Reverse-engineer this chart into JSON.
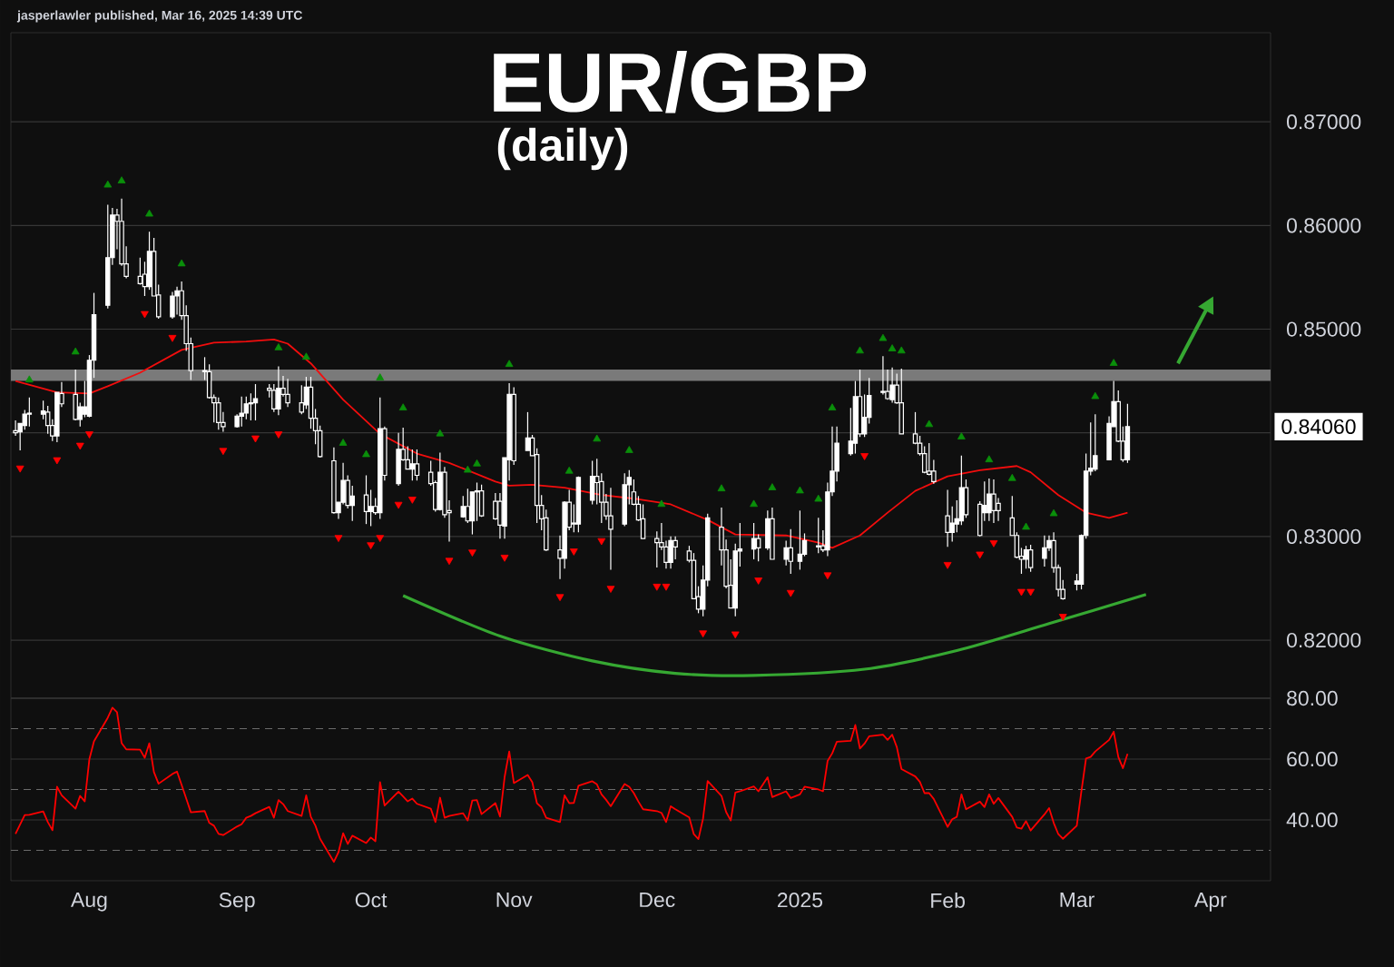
{
  "chart_data": [
    {
      "type": "candlestick",
      "title": "EUR/GBP",
      "subtitle": "(daily)",
      "annotations": [
        "jasperlawler published, Mar 16, 2025 14:39 UTC"
      ],
      "color": "#ffffff",
      "x": [
        "2024-07-16",
        "2024-07-17",
        "2024-07-18",
        "2024-07-19",
        "2024-07-22",
        "2024-07-23",
        "2024-07-24",
        "2024-07-25",
        "2024-07-26",
        "2024-07-29",
        "2024-07-30",
        "2024-07-31",
        "2024-08-01",
        "2024-08-02",
        "2024-08-05",
        "2024-08-06",
        "2024-08-07",
        "2024-08-08",
        "2024-08-09",
        "2024-08-12",
        "2024-08-13",
        "2024-08-14",
        "2024-08-15",
        "2024-08-16",
        "2024-08-19",
        "2024-08-20",
        "2024-08-21",
        "2024-08-22",
        "2024-08-23",
        "2024-08-26",
        "2024-08-27",
        "2024-08-28",
        "2024-08-29",
        "2024-08-30",
        "2024-09-02",
        "2024-09-03",
        "2024-09-04",
        "2024-09-05",
        "2024-09-06",
        "2024-09-09",
        "2024-09-10",
        "2024-09-11",
        "2024-09-12",
        "2024-09-13",
        "2024-09-16",
        "2024-09-17",
        "2024-09-18",
        "2024-09-19",
        "2024-09-20",
        "2024-09-23",
        "2024-09-24",
        "2024-09-25",
        "2024-09-26",
        "2024-09-27",
        "2024-09-30",
        "2024-10-01",
        "2024-10-02",
        "2024-10-03",
        "2024-10-04",
        "2024-10-07",
        "2024-10-08",
        "2024-10-09",
        "2024-10-10",
        "2024-10-11",
        "2024-10-14",
        "2024-10-15",
        "2024-10-16",
        "2024-10-17",
        "2024-10-18",
        "2024-10-21",
        "2024-10-22",
        "2024-10-23",
        "2024-10-24",
        "2024-10-25",
        "2024-10-28",
        "2024-10-29",
        "2024-10-30",
        "2024-10-31",
        "2024-11-01",
        "2024-11-04",
        "2024-11-05",
        "2024-11-06",
        "2024-11-07",
        "2024-11-08",
        "2024-11-11",
        "2024-11-12",
        "2024-11-13",
        "2024-11-14",
        "2024-11-15",
        "2024-11-18",
        "2024-11-19",
        "2024-11-20",
        "2024-11-21",
        "2024-11-22",
        "2024-11-25",
        "2024-11-26",
        "2024-11-27",
        "2024-11-28",
        "2024-11-29",
        "2024-12-02",
        "2024-12-03",
        "2024-12-04",
        "2024-12-05",
        "2024-12-06",
        "2024-12-09",
        "2024-12-10",
        "2024-12-11",
        "2024-12-12",
        "2024-12-13",
        "2024-12-16",
        "2024-12-17",
        "2024-12-18",
        "2024-12-19",
        "2024-12-20",
        "2024-12-23",
        "2024-12-24",
        "2024-12-26",
        "2024-12-27",
        "2024-12-30",
        "2024-12-31",
        "2025-01-02",
        "2025-01-03",
        "2025-01-06",
        "2025-01-07",
        "2025-01-08",
        "2025-01-09",
        "2025-01-10",
        "2025-01-13",
        "2025-01-14",
        "2025-01-15",
        "2025-01-16",
        "2025-01-17",
        "2025-01-20",
        "2025-01-21",
        "2025-01-22",
        "2025-01-23",
        "2025-01-24",
        "2025-01-27",
        "2025-01-28",
        "2025-01-29",
        "2025-01-30",
        "2025-01-31",
        "2025-02-03",
        "2025-02-04",
        "2025-02-05",
        "2025-02-06",
        "2025-02-07",
        "2025-02-10",
        "2025-02-11",
        "2025-02-12",
        "2025-02-13",
        "2025-02-14",
        "2025-02-17",
        "2025-02-18",
        "2025-02-19",
        "2025-02-20",
        "2025-02-21",
        "2025-02-24",
        "2025-02-25",
        "2025-02-26",
        "2025-02-27",
        "2025-02-28",
        "2025-03-03",
        "2025-03-04",
        "2025-03-05",
        "2025-03-06",
        "2025-03-07",
        "2025-03-10",
        "2025-03-11",
        "2025-03-12",
        "2025-03-13",
        "2025-03-14"
      ],
      "ohlc": [
        [
          0.8402,
          0.8412,
          0.8397,
          0.84
        ],
        [
          0.8401,
          0.8409,
          0.8383,
          0.8409
        ],
        [
          0.8407,
          0.8422,
          0.8403,
          0.8418
        ],
        [
          0.8418,
          0.8434,
          0.8406,
          0.8419
        ],
        [
          0.8418,
          0.8431,
          0.8413,
          0.8421
        ],
        [
          0.842,
          0.8426,
          0.8399,
          0.8407
        ],
        [
          0.8407,
          0.8413,
          0.8392,
          0.8397
        ],
        [
          0.8397,
          0.8439,
          0.8391,
          0.8439
        ],
        [
          0.8438,
          0.8449,
          0.8425,
          0.8428
        ],
        [
          0.8437,
          0.8461,
          0.8412,
          0.8413
        ],
        [
          0.8413,
          0.8429,
          0.8406,
          0.8425
        ],
        [
          0.8418,
          0.845,
          0.8415,
          0.8425
        ],
        [
          0.8416,
          0.8475,
          0.8415,
          0.847
        ],
        [
          0.847,
          0.8535,
          0.8453,
          0.8514
        ],
        [
          0.8523,
          0.862,
          0.852,
          0.8569
        ],
        [
          0.8569,
          0.8617,
          0.8562,
          0.861
        ],
        [
          0.861,
          0.8616,
          0.8577,
          0.8604
        ],
        [
          0.8604,
          0.8626,
          0.8561,
          0.8563
        ],
        [
          0.8563,
          0.858,
          0.8549,
          0.8551
        ],
        [
          0.8551,
          0.8569,
          0.8543,
          0.8544
        ],
        [
          0.8553,
          0.8565,
          0.8532,
          0.8541
        ],
        [
          0.8541,
          0.8594,
          0.8538,
          0.8575
        ],
        [
          0.8575,
          0.8588,
          0.8532,
          0.8532
        ],
        [
          0.8533,
          0.8543,
          0.851,
          0.8512
        ],
        [
          0.8512,
          0.8536,
          0.851,
          0.8532
        ],
        [
          0.8532,
          0.8541,
          0.8514,
          0.8537
        ],
        [
          0.8537,
          0.8546,
          0.8509,
          0.8513
        ],
        [
          0.8513,
          0.8523,
          0.8479,
          0.8486
        ],
        [
          0.8486,
          0.8492,
          0.8451,
          0.846
        ],
        [
          0.846,
          0.8473,
          0.8451,
          0.8459
        ],
        [
          0.8459,
          0.8466,
          0.8433,
          0.8434
        ],
        [
          0.8434,
          0.8437,
          0.841,
          0.8429
        ],
        [
          0.8429,
          0.8434,
          0.8403,
          0.841
        ],
        [
          0.841,
          0.842,
          0.8401,
          0.8406
        ],
        [
          0.8406,
          0.8418,
          0.8405,
          0.8416
        ],
        [
          0.8416,
          0.8435,
          0.8406,
          0.8419
        ],
        [
          0.8419,
          0.8435,
          0.8413,
          0.8428
        ],
        [
          0.8428,
          0.8438,
          0.8412,
          0.8429
        ],
        [
          0.8429,
          0.8447,
          0.8412,
          0.8433
        ],
        [
          0.8443,
          0.8447,
          0.8434,
          0.8441
        ],
        [
          0.8441,
          0.8447,
          0.842,
          0.8423
        ],
        [
          0.8423,
          0.8464,
          0.8417,
          0.8443
        ],
        [
          0.8443,
          0.8455,
          0.8435,
          0.8437
        ],
        [
          0.8437,
          0.8452,
          0.8425,
          0.8429
        ],
        [
          0.8429,
          0.8446,
          0.8418,
          0.842
        ],
        [
          0.8427,
          0.8454,
          0.8423,
          0.8444
        ],
        [
          0.8444,
          0.8454,
          0.8404,
          0.8414
        ],
        [
          0.8414,
          0.8423,
          0.8389,
          0.8402
        ],
        [
          0.8402,
          0.8407,
          0.8376,
          0.8377
        ],
        [
          0.8373,
          0.8386,
          0.8322,
          0.8323
        ],
        [
          0.8323,
          0.8333,
          0.8317,
          0.8333
        ],
        [
          0.8333,
          0.8371,
          0.8331,
          0.8354
        ],
        [
          0.8354,
          0.8359,
          0.8327,
          0.833
        ],
        [
          0.833,
          0.8349,
          0.8315,
          0.8339
        ],
        [
          0.834,
          0.8359,
          0.8312,
          0.8324
        ],
        [
          0.8324,
          0.8345,
          0.831,
          0.8329
        ],
        [
          0.8329,
          0.8337,
          0.8321,
          0.8323
        ],
        [
          0.8323,
          0.8434,
          0.8317,
          0.8404
        ],
        [
          0.8404,
          0.8406,
          0.8354,
          0.8359
        ],
        [
          0.8351,
          0.84,
          0.8349,
          0.8384
        ],
        [
          0.8384,
          0.8405,
          0.8373,
          0.8374
        ],
        [
          0.8374,
          0.8387,
          0.8365,
          0.8365
        ],
        [
          0.8365,
          0.8384,
          0.8354,
          0.837
        ],
        [
          0.837,
          0.8384,
          0.8354,
          0.8359
        ],
        [
          0.8362,
          0.8373,
          0.8349,
          0.8351
        ],
        [
          0.8352,
          0.8354,
          0.8324,
          0.8326
        ],
        [
          0.8326,
          0.8381,
          0.8325,
          0.8362
        ],
        [
          0.8362,
          0.8367,
          0.8318,
          0.8321
        ],
        [
          0.8325,
          0.8335,
          0.8295,
          0.8323
        ],
        [
          0.8319,
          0.8339,
          0.8318,
          0.8329
        ],
        [
          0.8329,
          0.8346,
          0.8313,
          0.8315
        ],
        [
          0.8315,
          0.8343,
          0.8302,
          0.8343
        ],
        [
          0.8343,
          0.8352,
          0.8315,
          0.8344
        ],
        [
          0.8344,
          0.835,
          0.8319,
          0.832
        ],
        [
          0.8334,
          0.8342,
          0.8316,
          0.8317
        ],
        [
          0.8334,
          0.8342,
          0.8298,
          0.8311
        ],
        [
          0.831,
          0.8376,
          0.8298,
          0.8376
        ],
        [
          0.8374,
          0.8448,
          0.8354,
          0.8437
        ],
        [
          0.8437,
          0.8444,
          0.8369,
          0.8373
        ],
        [
          0.8383,
          0.842,
          0.8383,
          0.8395
        ],
        [
          0.8395,
          0.8398,
          0.8378,
          0.8378
        ],
        [
          0.8379,
          0.8385,
          0.8313,
          0.833
        ],
        [
          0.833,
          0.834,
          0.8306,
          0.8317
        ],
        [
          0.8318,
          0.8326,
          0.8286,
          0.8287
        ],
        [
          0.8287,
          0.8301,
          0.8259,
          0.8279
        ],
        [
          0.8279,
          0.8334,
          0.8269,
          0.8333
        ],
        [
          0.8333,
          0.8345,
          0.8306,
          0.8309
        ],
        [
          0.8313,
          0.8331,
          0.8304,
          0.8312
        ],
        [
          0.8312,
          0.8358,
          0.8304,
          0.8357
        ],
        [
          0.8335,
          0.8373,
          0.8331,
          0.8358
        ],
        [
          0.8358,
          0.8375,
          0.8331,
          0.8352
        ],
        [
          0.8353,
          0.8361,
          0.8313,
          0.8333
        ],
        [
          0.8333,
          0.8341,
          0.8316,
          0.832
        ],
        [
          0.832,
          0.8347,
          0.8268,
          0.8307
        ],
        [
          0.8312,
          0.8361,
          0.831,
          0.835
        ],
        [
          0.835,
          0.8364,
          0.8331,
          0.8357
        ],
        [
          0.8343,
          0.8355,
          0.833,
          0.8331
        ],
        [
          0.8331,
          0.8339,
          0.8315,
          0.8316
        ],
        [
          0.8317,
          0.8331,
          0.8298,
          0.8298
        ],
        [
          0.8298,
          0.8305,
          0.827,
          0.8294
        ],
        [
          0.8294,
          0.8313,
          0.8287,
          0.829
        ],
        [
          0.829,
          0.8296,
          0.8269,
          0.8275
        ],
        [
          0.8275,
          0.83,
          0.8269,
          0.8296
        ],
        [
          0.8296,
          0.83,
          0.8278,
          0.829
        ],
        [
          0.8286,
          0.8291,
          0.8275,
          0.8277
        ],
        [
          0.8277,
          0.8284,
          0.824,
          0.824
        ],
        [
          0.8242,
          0.8252,
          0.8226,
          0.823
        ],
        [
          0.823,
          0.8272,
          0.8223,
          0.8258
        ],
        [
          0.8258,
          0.8322,
          0.8252,
          0.8318
        ],
        [
          0.8309,
          0.8328,
          0.8272,
          0.8287
        ],
        [
          0.8287,
          0.8297,
          0.825,
          0.8252
        ],
        [
          0.8253,
          0.8278,
          0.8231,
          0.8231
        ],
        [
          0.8231,
          0.8293,
          0.8223,
          0.8286
        ],
        [
          0.8286,
          0.8313,
          0.8271,
          0.8288
        ],
        [
          0.8288,
          0.8313,
          0.8278,
          0.8298
        ],
        [
          0.8298,
          0.8302,
          0.8276,
          0.8289
        ],
        [
          0.8289,
          0.8325,
          0.8287,
          0.8317
        ],
        [
          0.8317,
          0.8328,
          0.8278,
          0.8278
        ],
        [
          0.8278,
          0.8296,
          0.8272,
          0.8289
        ],
        [
          0.8289,
          0.8307,
          0.8264,
          0.8276
        ],
        [
          0.8276,
          0.8325,
          0.8268,
          0.8283
        ],
        [
          0.8283,
          0.8303,
          0.8281,
          0.8296
        ],
        [
          0.829,
          0.8318,
          0.8284,
          0.8291
        ],
        [
          0.8291,
          0.8306,
          0.8285,
          0.8287
        ],
        [
          0.8287,
          0.8352,
          0.8281,
          0.8343
        ],
        [
          0.8343,
          0.8406,
          0.8339,
          0.8363
        ],
        [
          0.8363,
          0.8406,
          0.8353,
          0.839
        ],
        [
          0.838,
          0.8424,
          0.8378,
          0.8392
        ],
        [
          0.839,
          0.845,
          0.838,
          0.8435
        ],
        [
          0.8435,
          0.8461,
          0.8396,
          0.8399
        ],
        [
          0.8399,
          0.8437,
          0.8396,
          0.8415
        ],
        [
          0.8415,
          0.8453,
          0.8409,
          0.8436
        ],
        [
          0.8439,
          0.8474,
          0.8437,
          0.844
        ],
        [
          0.844,
          0.8461,
          0.8432,
          0.8433
        ],
        [
          0.8432,
          0.8463,
          0.8429,
          0.8446
        ],
        [
          0.8446,
          0.8457,
          0.8428,
          0.8429
        ],
        [
          0.8429,
          0.8462,
          0.8399,
          0.8399
        ],
        [
          0.8399,
          0.842,
          0.8389,
          0.839
        ],
        [
          0.839,
          0.8397,
          0.8378,
          0.838
        ],
        [
          0.838,
          0.8387,
          0.8361,
          0.8362
        ],
        [
          0.8363,
          0.839,
          0.8359,
          0.836
        ],
        [
          0.8363,
          0.8374,
          0.8351,
          0.8353
        ],
        [
          0.832,
          0.8345,
          0.829,
          0.8304
        ],
        [
          0.8304,
          0.8329,
          0.8295,
          0.8313
        ],
        [
          0.8312,
          0.8335,
          0.8304,
          0.8317
        ],
        [
          0.8315,
          0.8378,
          0.8311,
          0.8347
        ],
        [
          0.8347,
          0.8355,
          0.8318,
          0.8321
        ],
        [
          0.8331,
          0.8334,
          0.83,
          0.8301
        ],
        [
          0.8323,
          0.8353,
          0.8315,
          0.833
        ],
        [
          0.8323,
          0.8356,
          0.8315,
          0.8341
        ],
        [
          0.8341,
          0.8355,
          0.8313,
          0.8325
        ],
        [
          0.8332,
          0.8337,
          0.8315,
          0.8325
        ],
        [
          0.8318,
          0.8339,
          0.8301,
          0.8301
        ],
        [
          0.8301,
          0.8304,
          0.8279,
          0.828
        ],
        [
          0.8281,
          0.8289,
          0.8264,
          0.8278
        ],
        [
          0.8278,
          0.8291,
          0.8269,
          0.8287
        ],
        [
          0.8287,
          0.8292,
          0.8266,
          0.827
        ],
        [
          0.8279,
          0.8301,
          0.8271,
          0.8289
        ],
        [
          0.8289,
          0.8301,
          0.8286,
          0.8296
        ],
        [
          0.8296,
          0.8304,
          0.8265,
          0.827
        ],
        [
          0.827,
          0.8273,
          0.8242,
          0.8249
        ],
        [
          0.8249,
          0.8258,
          0.8239,
          0.824
        ],
        [
          0.8254,
          0.8264,
          0.8248,
          0.8257
        ],
        [
          0.8254,
          0.8302,
          0.8249,
          0.8301
        ],
        [
          0.8301,
          0.838,
          0.8298,
          0.8363
        ],
        [
          0.8363,
          0.841,
          0.8359,
          0.8366
        ],
        [
          0.8365,
          0.8418,
          0.8363,
          0.8378
        ],
        [
          0.8374,
          0.8416,
          0.8374,
          0.8409
        ],
        [
          0.8406,
          0.845,
          0.8406,
          0.843
        ],
        [
          0.843,
          0.8441,
          0.8391,
          0.8392
        ],
        [
          0.8392,
          0.8406,
          0.8372,
          0.8374
        ],
        [
          0.8374,
          0.8428,
          0.8371,
          0.8406
        ]
      ],
      "series": [
        {
          "type": "line",
          "color": "#f20d0d",
          "x": [
            "2024-07-16",
            "2024-07-25",
            "2024-08-01",
            "2024-08-05",
            "2024-08-12",
            "2024-08-21",
            "2024-08-28",
            "2024-09-04",
            "2024-09-10",
            "2024-09-13",
            "2024-09-18",
            "2024-09-25",
            "2024-10-03",
            "2024-10-11",
            "2024-10-18",
            "2024-10-28",
            "2024-10-31",
            "2024-11-05",
            "2024-11-12",
            "2024-11-20",
            "2024-11-28",
            "2024-12-05",
            "2024-12-13",
            "2024-12-19",
            "2024-12-30",
            "2025-01-06",
            "2025-01-09",
            "2025-01-15",
            "2025-01-21",
            "2025-01-27",
            "2025-02-03",
            "2025-02-10",
            "2025-02-18",
            "2025-02-21",
            "2025-02-27",
            "2025-03-05",
            "2025-03-10",
            "2025-03-14"
          ],
          "values": [
            0.845,
            0.8439,
            0.8438,
            0.8445,
            0.8458,
            0.848,
            0.8487,
            0.8488,
            0.849,
            0.8486,
            0.8467,
            0.8432,
            0.8399,
            0.838,
            0.8371,
            0.8353,
            0.8349,
            0.835,
            0.8347,
            0.834,
            0.8336,
            0.8331,
            0.8316,
            0.8302,
            0.8301,
            0.8294,
            0.8289,
            0.8301,
            0.8323,
            0.8344,
            0.8358,
            0.8364,
            0.8368,
            0.8362,
            0.834,
            0.8323,
            0.8318,
            0.8323
          ]
        },
        {
          "type": "scatter",
          "marker": "triangle",
          "color": "#0a8f0a",
          "x": [
            "2024-07-19",
            "2024-07-29",
            "2024-08-05",
            "2024-08-08",
            "2024-08-14",
            "2024-08-21",
            "2024-09-11",
            "2024-09-17",
            "2024-09-25",
            "2024-09-30",
            "2024-10-03",
            "2024-10-08",
            "2024-10-16",
            "2024-10-22",
            "2024-10-24",
            "2024-10-31",
            "2024-11-13",
            "2024-11-19",
            "2024-11-26",
            "2024-12-03",
            "2024-12-16",
            "2024-12-23",
            "2024-12-27",
            "2025-01-02",
            "2025-01-06",
            "2025-01-09",
            "2025-01-15",
            "2025-01-20",
            "2025-01-22",
            "2025-01-24",
            "2025-01-30",
            "2025-02-06",
            "2025-02-12",
            "2025-02-17",
            "2025-02-20",
            "2025-02-26",
            "2025-03-07",
            "2025-03-11"
          ],
          "values": [
            0.8451,
            0.8478,
            0.8639,
            0.8643,
            0.8611,
            0.8563,
            0.8482,
            0.8473,
            0.839,
            0.8379,
            0.8453,
            0.8424,
            0.8399,
            0.8364,
            0.837,
            0.8466,
            0.8363,
            0.8394,
            0.8383,
            0.8331,
            0.8346,
            0.8331,
            0.8347,
            0.8344,
            0.8336,
            0.8424,
            0.8479,
            0.8491,
            0.8481,
            0.8479,
            0.8408,
            0.8396,
            0.8374,
            0.8356,
            0.8309,
            0.8322,
            0.8435,
            0.8467
          ]
        },
        {
          "type": "scatter",
          "marker": "triangle",
          "color": "#ff0000",
          "x": [
            "2024-07-17",
            "2024-07-25",
            "2024-07-30",
            "2024-08-01",
            "2024-08-13",
            "2024-08-19",
            "2024-08-30",
            "2024-09-06",
            "2024-09-11",
            "2024-09-24",
            "2024-10-01",
            "2024-10-03",
            "2024-10-07",
            "2024-10-10",
            "2024-10-18",
            "2024-10-23",
            "2024-10-30",
            "2024-11-11",
            "2024-11-14",
            "2024-11-20",
            "2024-11-22",
            "2024-12-02",
            "2024-12-04",
            "2024-12-12",
            "2024-12-19",
            "2024-12-24",
            "2024-12-31",
            "2025-01-08",
            "2025-01-16",
            "2025-02-03",
            "2025-02-10",
            "2025-02-13",
            "2025-02-19",
            "2025-02-21",
            "2025-02-28"
          ],
          "values": [
            0.8366,
            0.8374,
            0.8388,
            0.8399,
            0.8515,
            0.8492,
            0.8383,
            0.8395,
            0.8399,
            0.8299,
            0.8292,
            0.8299,
            0.8331,
            0.8336,
            0.8277,
            0.8285,
            0.828,
            0.8242,
            0.8286,
            0.8296,
            0.825,
            0.8252,
            0.8252,
            0.8207,
            0.8206,
            0.8258,
            0.8246,
            0.8263,
            0.8378,
            0.8273,
            0.8283,
            0.8294,
            0.8247,
            0.8247,
            0.8223
          ]
        },
        {
          "type": "line",
          "color": "#36a832",
          "x": [
            "2024-10-08",
            "2024-10-29",
            "2024-11-18",
            "2024-12-06",
            "2024-12-23",
            "2025-01-16",
            "2025-02-05",
            "2025-02-25",
            "2025-03-18"
          ],
          "values": [
            0.8243,
            0.8204,
            0.818,
            0.8168,
            0.8166,
            0.8172,
            0.819,
            0.8216,
            0.8244
          ]
        }
      ],
      "bands": [
        {
          "axis": "y",
          "from": 0.845,
          "to": 0.8461,
          "color": "#7a7a7a"
        }
      ],
      "xlim": [
        "2024-07-15",
        "2025-04-14"
      ],
      "ylim": [
        0.8144,
        0.8786
      ],
      "yticks": [
        {
          "value": 0.82,
          "label": "0.82000"
        },
        {
          "value": 0.83,
          "label": "0.83000"
        },
        {
          "value": 0.84,
          "label": null
        },
        {
          "value": 0.8406,
          "label": "0.84060"
        },
        {
          "value": 0.85,
          "label": "0.85000"
        },
        {
          "value": 0.86,
          "label": "0.86000"
        },
        {
          "value": 0.87,
          "label": "0.87000"
        }
      ],
      "grid": "y",
      "tick_labels": "y"
    },
    {
      "type": "line",
      "x": [
        "2024-07-16",
        "2024-07-17",
        "2024-07-18",
        "2024-07-19",
        "2024-07-22",
        "2024-07-23",
        "2024-07-24",
        "2024-07-25",
        "2024-07-26",
        "2024-07-29",
        "2024-07-30",
        "2024-07-31",
        "2024-08-01",
        "2024-08-02",
        "2024-08-05",
        "2024-08-06",
        "2024-08-07",
        "2024-08-08",
        "2024-08-09",
        "2024-08-12",
        "2024-08-13",
        "2024-08-14",
        "2024-08-15",
        "2024-08-16",
        "2024-08-19",
        "2024-08-20",
        "2024-08-21",
        "2024-08-22",
        "2024-08-23",
        "2024-08-26",
        "2024-08-27",
        "2024-08-28",
        "2024-08-29",
        "2024-08-30",
        "2024-09-02",
        "2024-09-03",
        "2024-09-04",
        "2024-09-05",
        "2024-09-06",
        "2024-09-09",
        "2024-09-10",
        "2024-09-11",
        "2024-09-12",
        "2024-09-13",
        "2024-09-16",
        "2024-09-17",
        "2024-09-18",
        "2024-09-19",
        "2024-09-20",
        "2024-09-23",
        "2024-09-24",
        "2024-09-25",
        "2024-09-26",
        "2024-09-27",
        "2024-09-30",
        "2024-10-01",
        "2024-10-02",
        "2024-10-03",
        "2024-10-04",
        "2024-10-07",
        "2024-10-08",
        "2024-10-09",
        "2024-10-10",
        "2024-10-11",
        "2024-10-14",
        "2024-10-15",
        "2024-10-16",
        "2024-10-17",
        "2024-10-18",
        "2024-10-21",
        "2024-10-22",
        "2024-10-23",
        "2024-10-24",
        "2024-10-25",
        "2024-10-28",
        "2024-10-29",
        "2024-10-30",
        "2024-10-31",
        "2024-11-01",
        "2024-11-04",
        "2024-11-05",
        "2024-11-06",
        "2024-11-07",
        "2024-11-08",
        "2024-11-11",
        "2024-11-12",
        "2024-11-13",
        "2024-11-14",
        "2024-11-15",
        "2024-11-18",
        "2024-11-19",
        "2024-11-20",
        "2024-11-21",
        "2024-11-22",
        "2024-11-25",
        "2024-11-26",
        "2024-11-27",
        "2024-11-28",
        "2024-11-29",
        "2024-12-02",
        "2024-12-03",
        "2024-12-04",
        "2024-12-05",
        "2024-12-06",
        "2024-12-09",
        "2024-12-10",
        "2024-12-11",
        "2024-12-12",
        "2024-12-13",
        "2024-12-16",
        "2024-12-17",
        "2024-12-18",
        "2024-12-19",
        "2024-12-20",
        "2024-12-23",
        "2024-12-24",
        "2024-12-26",
        "2024-12-27",
        "2024-12-30",
        "2024-12-31",
        "2025-01-02",
        "2025-01-03",
        "2025-01-06",
        "2025-01-07",
        "2025-01-08",
        "2025-01-09",
        "2025-01-10",
        "2025-01-13",
        "2025-01-14",
        "2025-01-15",
        "2025-01-16",
        "2025-01-17",
        "2025-01-20",
        "2025-01-21",
        "2025-01-22",
        "2025-01-23",
        "2025-01-24",
        "2025-01-27",
        "2025-01-28",
        "2025-01-29",
        "2025-01-30",
        "2025-01-31",
        "2025-02-03",
        "2025-02-04",
        "2025-02-05",
        "2025-02-06",
        "2025-02-07",
        "2025-02-10",
        "2025-02-11",
        "2025-02-12",
        "2025-02-13",
        "2025-02-14",
        "2025-02-17",
        "2025-02-18",
        "2025-02-19",
        "2025-02-20",
        "2025-02-21",
        "2025-02-24",
        "2025-02-25",
        "2025-02-26",
        "2025-02-27",
        "2025-02-28",
        "2025-03-03",
        "2025-03-04",
        "2025-03-05",
        "2025-03-06",
        "2025-03-07",
        "2025-03-10",
        "2025-03-11",
        "2025-03-12",
        "2025-03-13",
        "2025-03-14"
      ],
      "series": [
        {
          "color": "#ff0000",
          "values": [
            35.4,
            38.5,
            41.6,
            41.7,
            42.8,
            39.3,
            36.6,
            50.9,
            48.1,
            43.7,
            47.9,
            46.1,
            59.9,
            65.8,
            73.6,
            76.9,
            75.4,
            65.2,
            63.2,
            63.1,
            60.4,
            65.2,
            55.7,
            51.9,
            55.1,
            55.9,
            51.5,
            47.0,
            42.5,
            42.9,
            39.0,
            38.1,
            35.4,
            35.0,
            37.8,
            38.6,
            40.7,
            41.3,
            42.2,
            44.3,
            40.7,
            46.5,
            45.2,
            42.9,
            41.3,
            48.1,
            41.0,
            38.1,
            33.8,
            26.2,
            29.4,
            35.6,
            32.1,
            34.8,
            32.4,
            34.2,
            33.0,
            52.4,
            44.7,
            49.3,
            47.7,
            46.1,
            47.0,
            45.3,
            43.7,
            39.3,
            47.3,
            40.7,
            41.3,
            42.2,
            39.8,
            46.4,
            46.5,
            41.9,
            45.5,
            41.1,
            54.1,
            62.5,
            52.1,
            54.8,
            52.4,
            45.5,
            44.1,
            40.7,
            39.3,
            48.1,
            45.5,
            45.6,
            51.2,
            52.7,
            51.7,
            48.4,
            46.6,
            44.5,
            51.8,
            50.9,
            48.8,
            46.0,
            43.5,
            42.9,
            42.3,
            39.3,
            44.5,
            43.5,
            40.8,
            35.3,
            33.7,
            40.4,
            52.8,
            47.9,
            42.6,
            39.8,
            49.0,
            49.4,
            51.0,
            49.4,
            54.0,
            47.5,
            49.4,
            47.2,
            48.4,
            50.9,
            50.0,
            49.4,
            59.4,
            61.9,
            65.7,
            66.0,
            71.2,
            63.5,
            65.1,
            67.5,
            68.0,
            66.3,
            68.0,
            63.9,
            56.7,
            54.3,
            52.5,
            48.8,
            48.8,
            46.9,
            37.7,
            40.2,
            41.0,
            48.4,
            43.5,
            46.0,
            44.2,
            48.4,
            45.3,
            47.2,
            41.0,
            37.5,
            37.1,
            39.6,
            36.5,
            41.8,
            43.9,
            39.0,
            35.3,
            33.8,
            38.1,
            49.4,
            60.2,
            60.7,
            62.5,
            66.3,
            69.0,
            60.7,
            57.0,
            61.7
          ]
        }
      ],
      "ref_lines": [
        {
          "axis": "y",
          "value": 70,
          "color": "#6b6b6b",
          "line_style": "dashed"
        },
        {
          "axis": "y",
          "value": 50,
          "color": "#6b6b6b",
          "line_style": "dashed"
        },
        {
          "axis": "y",
          "value": 30,
          "color": "#6b6b6b",
          "line_style": "dashed"
        }
      ],
      "xlim": [
        "2024-07-15",
        "2025-04-14"
      ],
      "ylim": [
        20,
        80
      ],
      "xticks": [
        {
          "value": "2024-08-01",
          "label": "Aug"
        },
        {
          "value": "2024-09-02",
          "label": "Sep"
        },
        {
          "value": "2024-10-01",
          "label": "Oct"
        },
        {
          "value": "2024-11-01",
          "label": "Nov"
        },
        {
          "value": "2024-12-02",
          "label": "Dec"
        },
        {
          "value": "2025-01-02",
          "label": "2025"
        },
        {
          "value": "2025-02-03",
          "label": "Feb"
        },
        {
          "value": "2025-03-03",
          "label": "Mar"
        },
        {
          "value": "2025-04-01",
          "label": "Apr"
        }
      ],
      "yticks": [
        {
          "value": 40,
          "label": "40.00"
        },
        {
          "value": 60,
          "label": "60.00"
        },
        {
          "value": 80,
          "label": "80.00"
        }
      ],
      "grid": "y"
    }
  ]
}
